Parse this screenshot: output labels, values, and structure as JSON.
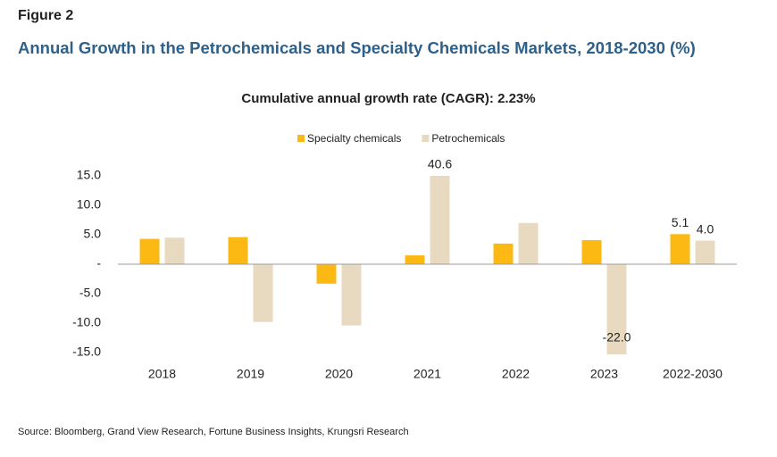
{
  "figure_label": "Figure 2",
  "source": "Source: Bloomberg, Grand View Research, Fortune Business Insights, Krungsri Research",
  "chart_data": {
    "type": "bar",
    "title": "Annual Growth in the Petrochemicals and Specialty Chemicals Markets, 2018-2030 (%)",
    "subtitle": "Cumulative annual growth rate (CAGR): 2.23%",
    "categories": [
      "2018",
      "2019",
      "2020",
      "2021",
      "2022",
      "2023",
      "2022-2030"
    ],
    "series": [
      {
        "name": "Specialty chemicals",
        "color": "#fdb913",
        "values": [
          4.3,
          4.6,
          -3.3,
          1.5,
          3.5,
          4.1,
          5.1
        ],
        "value_labels": [
          null,
          null,
          null,
          null,
          null,
          null,
          "5.1"
        ]
      },
      {
        "name": "Petrochemicals",
        "color": "#e8d9c1",
        "values": [
          4.5,
          -9.8,
          -10.4,
          40.6,
          7.0,
          -22.0,
          4.0
        ],
        "value_labels": [
          null,
          null,
          null,
          "40.6",
          null,
          "-22.0",
          "4.0"
        ]
      }
    ],
    "ylim": [
      -15.3,
      15
    ],
    "yticks": [
      {
        "value": 15,
        "label": "15.0"
      },
      {
        "value": 10,
        "label": "10.0"
      },
      {
        "value": 5,
        "label": "5.0"
      },
      {
        "value": 0,
        "label": "-"
      },
      {
        "value": -5,
        "label": "-5.0"
      },
      {
        "value": -10,
        "label": "-10.0"
      },
      {
        "value": -15,
        "label": "-15.0"
      }
    ],
    "legend": "top"
  }
}
